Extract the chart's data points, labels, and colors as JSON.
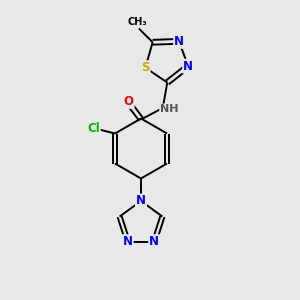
{
  "background_color": "#e8e8e8",
  "bond_color": "#000000",
  "atom_colors": {
    "N": "#0000ff",
    "O": "#ff0000",
    "S": "#ccaa00",
    "Cl": "#00bb00",
    "C": "#000000",
    "H": "#555555"
  },
  "lw": 1.4,
  "fs": 8.5,
  "xlim": [
    0,
    10
  ],
  "ylim": [
    0,
    10
  ]
}
